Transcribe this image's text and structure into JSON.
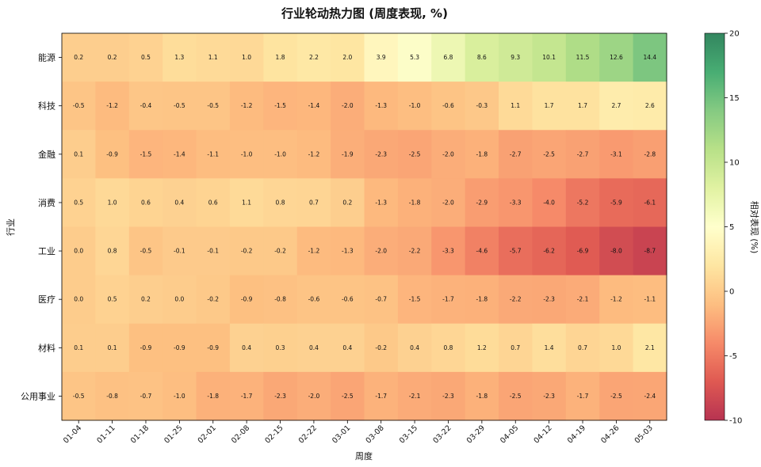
{
  "chart_data": {
    "type": "heatmap",
    "title": "行业轮动热力图 (周度表现, %)",
    "xlabel": "周度",
    "ylabel": "行业",
    "colorbar_label": "相对表现 (%)",
    "colorbar_range": [
      -10,
      20
    ],
    "colorbar_ticks": [
      -10,
      -5,
      0,
      5,
      10,
      15,
      20
    ],
    "colormap": "RdYlGn",
    "x": [
      "01-04",
      "01-11",
      "01-18",
      "01-25",
      "02-01",
      "02-08",
      "02-15",
      "02-22",
      "03-01",
      "03-08",
      "03-15",
      "03-22",
      "03-29",
      "04-05",
      "04-12",
      "04-19",
      "04-26",
      "05-03"
    ],
    "y": [
      "能源",
      "科技",
      "金融",
      "消费",
      "工业",
      "医疗",
      "材料",
      "公用事业"
    ],
    "values": [
      [
        0.2,
        0.2,
        0.5,
        1.3,
        1.1,
        1.0,
        1.8,
        2.2,
        2.0,
        3.9,
        5.3,
        6.8,
        8.6,
        9.3,
        10.1,
        11.5,
        12.6,
        14.4
      ],
      [
        -0.5,
        -1.2,
        -0.4,
        -0.5,
        -0.5,
        -1.2,
        -1.5,
        -1.4,
        -2.0,
        -1.3,
        -1.0,
        -0.6,
        -0.3,
        1.1,
        1.7,
        1.7,
        2.7,
        2.6
      ],
      [
        0.1,
        -0.9,
        -1.5,
        -1.4,
        -1.1,
        -1.0,
        -1.0,
        -1.2,
        -1.9,
        -2.3,
        -2.5,
        -2.0,
        -1.8,
        -2.7,
        -2.5,
        -2.7,
        -3.1,
        -2.8
      ],
      [
        0.5,
        1.0,
        0.6,
        0.4,
        0.6,
        1.1,
        0.8,
        0.7,
        0.2,
        -1.3,
        -1.8,
        -2.0,
        -2.9,
        -3.3,
        -4.0,
        -5.2,
        -5.9,
        -6.1
      ],
      [
        -0.0,
        0.8,
        -0.5,
        -0.1,
        -0.1,
        -0.2,
        -0.2,
        -1.2,
        -1.3,
        -2.0,
        -2.2,
        -3.3,
        -4.6,
        -5.7,
        -6.2,
        -6.9,
        -8.0,
        -8.7
      ],
      [
        0.0,
        0.5,
        0.2,
        0.0,
        -0.2,
        -0.9,
        -0.8,
        -0.6,
        -0.6,
        -0.7,
        -1.5,
        -1.7,
        -1.8,
        -2.2,
        -2.3,
        -2.1,
        -1.2,
        -1.1
      ],
      [
        0.1,
        0.1,
        -0.9,
        -0.9,
        -0.9,
        0.4,
        0.3,
        0.4,
        0.4,
        -0.2,
        0.4,
        0.8,
        1.2,
        0.7,
        1.4,
        0.7,
        1.0,
        2.1
      ],
      [
        -0.5,
        -0.8,
        -0.7,
        -1.0,
        -1.8,
        -1.7,
        -2.3,
        -2.0,
        -2.5,
        -1.7,
        -2.1,
        -2.3,
        -1.8,
        -2.5,
        -2.3,
        -1.7,
        -2.5,
        -2.4
      ]
    ]
  }
}
